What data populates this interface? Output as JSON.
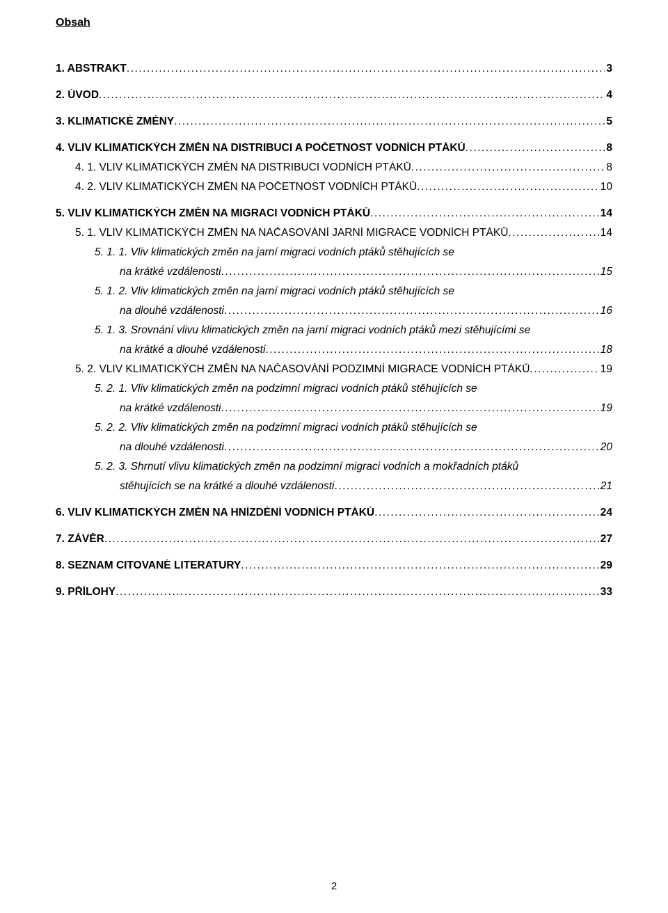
{
  "heading": "Obsah",
  "toc": {
    "e1": {
      "label": "1. ABSTRAKT",
      "page": "3"
    },
    "e2": {
      "label": "2. ÚVOD",
      "page": "4"
    },
    "e3": {
      "label": "3. KLIMATICKÉ ZMĚNY",
      "page": "5"
    },
    "e4": {
      "label": "4. VLIV KLIMATICKÝCH ZMĚN NA DISTRIBUCI A POČETNOST VODNÍCH PTÁKŮ",
      "page": "8"
    },
    "e5": {
      "label": "4. 1. VLIV KLIMATICKÝCH ZMĚN NA DISTRIBUCI VODNÍCH PTÁKŮ",
      "page": " 8"
    },
    "e6": {
      "label": "4. 2. VLIV KLIMATICKÝCH ZMĚN NA POČETNOST VODNÍCH PTÁKŮ",
      "page": " 10"
    },
    "e7": {
      "label": "5. VLIV KLIMATICKÝCH ZMĚN NA MIGRACI VODNÍCH PTÁKŮ",
      "page": "14"
    },
    "e8": {
      "label": "5. 1. VLIV KLIMATICKÝCH ZMĚN NA NAČASOVÁNÍ JARNÍ MIGRACE VODNÍCH PTÁKŮ",
      "page": " 14"
    },
    "e9a": {
      "label": "5. 1. 1.  Vliv klimatických změn na jarní migraci vodních ptáků stěhujících se"
    },
    "e9b": {
      "label": "na krátké vzdálenosti",
      "page": "15"
    },
    "e10a": {
      "label": "5. 1. 2.  Vliv klimatických změn na jarní migraci vodních ptáků stěhujících se"
    },
    "e10b": {
      "label": "na dlouhé vzdálenosti",
      "page": "16"
    },
    "e11a": {
      "label": "5. 1. 3.  Srovnání vlivu klimatických změn na jarní migraci vodních ptáků mezi stěhujícími se"
    },
    "e11b": {
      "label": "na krátké a dlouhé vzdálenosti",
      "page": "18"
    },
    "e12": {
      "label": "5. 2. VLIV KLIMATICKÝCH ZMĚN NA NAČASOVÁNÍ PODZIMNÍ MIGRACE VODNÍCH PTÁKŮ",
      "page": " 19"
    },
    "e13a": {
      "label": "5. 2. 1.  Vliv klimatických změn na podzimní migraci vodních ptáků stěhujících se"
    },
    "e13b": {
      "label": "na krátké vzdálenosti",
      "page": "19"
    },
    "e14a": {
      "label": "5. 2. 2.  Vliv klimatických změn na podzimní migraci vodních ptáků stěhujících se"
    },
    "e14b": {
      "label": "na dlouhé vzdálenosti",
      "page": "20"
    },
    "e15a": {
      "label": "5. 2. 3.  Shrnutí vlivu klimatických změn na podzimní migraci vodních a mokřadních ptáků"
    },
    "e15b": {
      "label": "stěhujících se na krátké a dlouhé vzdálenosti",
      "page": "21"
    },
    "e16": {
      "label": "6. VLIV KLIMATICKÝCH ZMĚN NA HNÍZDĚNÍ VODNÍCH PTÁKŮ",
      "page": "24"
    },
    "e17": {
      "label": "7. ZÁVĚR",
      "page": "27"
    },
    "e18": {
      "label": "8. SEZNAM CITOVANÉ LITERATURY",
      "page": "29"
    },
    "e19": {
      "label": "9. PŘÍLOHY",
      "page": "33"
    }
  },
  "pageNumber": "2"
}
